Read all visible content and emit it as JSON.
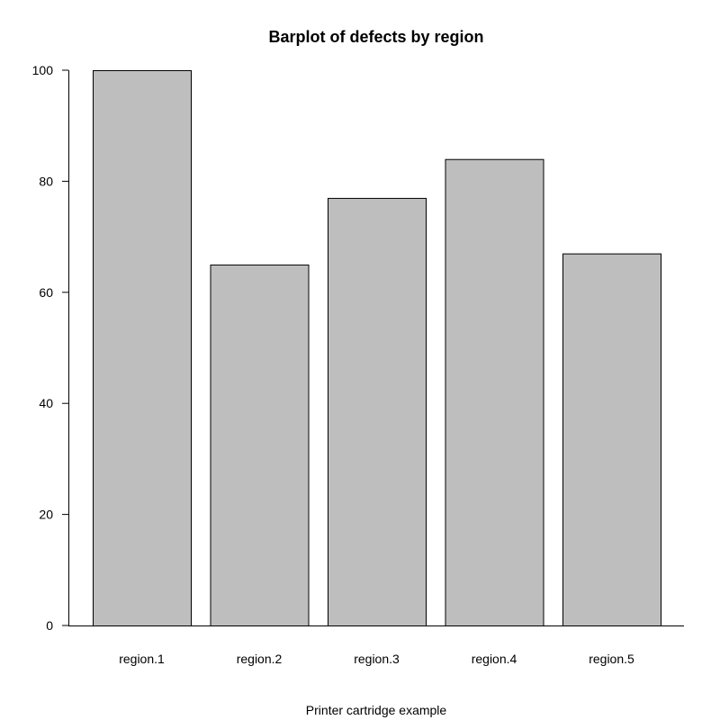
{
  "chart_data": {
    "type": "bar",
    "title": "Barplot of defects by region",
    "xlabel": "Printer cartridge example",
    "ylabel": "",
    "categories": [
      "region.1",
      "region.2",
      "region.3",
      "region.4",
      "region.5"
    ],
    "values": [
      100,
      65,
      77,
      84,
      67
    ],
    "ylim": [
      0,
      100
    ],
    "yticks": [
      "0",
      "20",
      "40",
      "60",
      "80",
      "100"
    ],
    "bar_color": "#bebebe",
    "bar_edge_color": "#000000",
    "grid": false,
    "legend": "none"
  }
}
